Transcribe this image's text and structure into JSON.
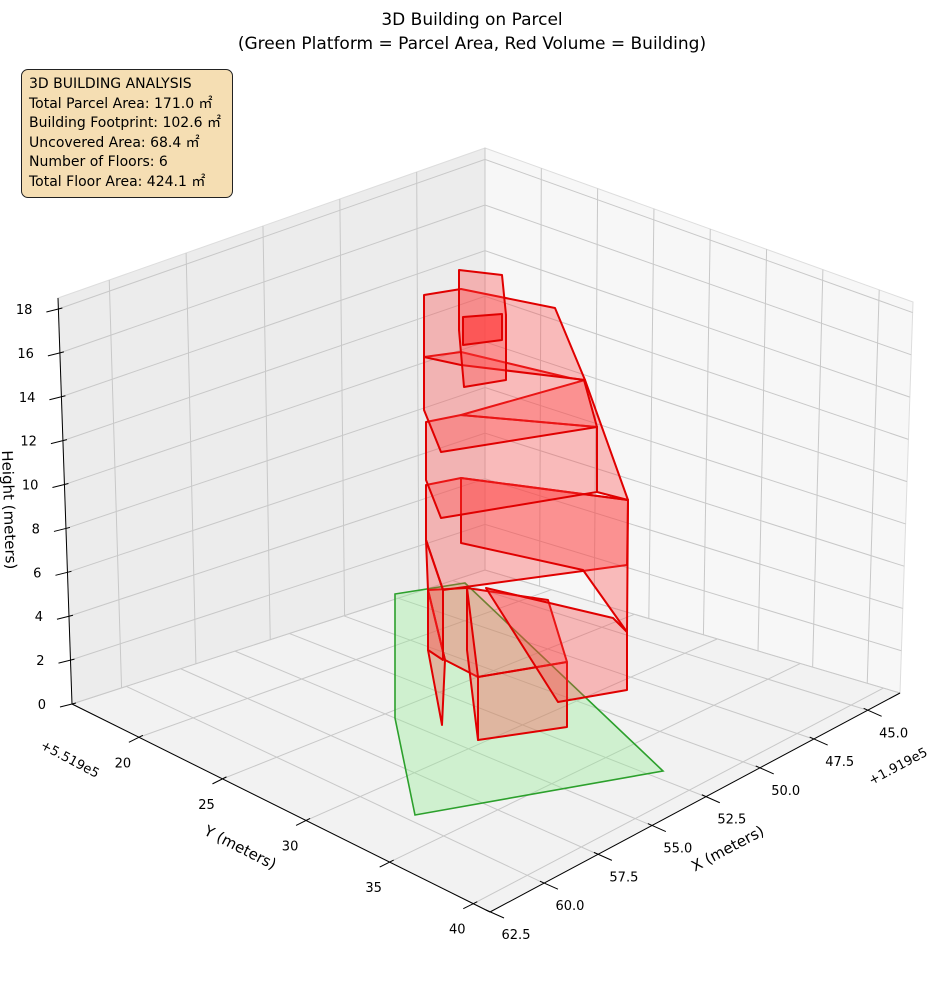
{
  "chart_data": {
    "type": "3d-polygons",
    "title": "3D Building on Parcel",
    "subtitle": "(Green Platform = Parcel Area, Red Volume = Building)",
    "xlabel": "X (meters)",
    "ylabel": "Y (meters)",
    "zlabel": "Height (meters)",
    "x_offset": "+1.919e5",
    "y_offset": "+5.519e5",
    "xticks": [
      "45.0",
      "47.5",
      "50.0",
      "52.5",
      "55.0",
      "57.5",
      "60.0",
      "62.5"
    ],
    "yticks": [
      "20",
      "25",
      "30",
      "35",
      "40"
    ],
    "zticks": [
      "0",
      "2",
      "4",
      "6",
      "8",
      "10",
      "12",
      "14",
      "16",
      "18"
    ],
    "xlim": [
      43.5,
      62.5
    ],
    "ylim": [
      16,
      41
    ],
    "zlim": [
      0,
      18.5
    ],
    "series": [
      {
        "name": "Parcel Area",
        "color": "#2ca02c",
        "fill": "#90ee90"
      },
      {
        "name": "Building",
        "color": "#e00000",
        "fill": "#ff4040",
        "floors": 6
      }
    ],
    "annotation": {
      "title": "3D BUILDING ANALYSIS",
      "lines": [
        "Total Parcel Area: 171.0 ㎡",
        "Building Footprint: 102.6 ㎡",
        "Uncovered Area: 68.4 ㎡",
        "Number of Floors: 6",
        "Total Floor Area: 424.1 ㎡"
      ]
    }
  }
}
